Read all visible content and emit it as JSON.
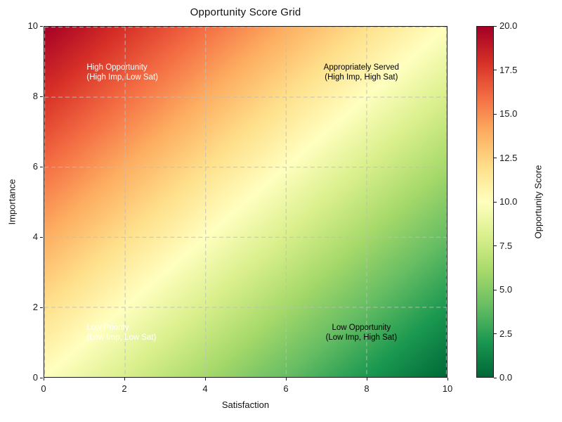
{
  "figure": {
    "background": "#ffffff"
  },
  "chart_data": {
    "type": "heatmap",
    "title": "Opportunity Score Grid",
    "xlabel": "Satisfaction",
    "ylabel": "Importance",
    "xlim": [
      0,
      10
    ],
    "ylim": [
      0,
      10
    ],
    "xticks": [
      0,
      2,
      4,
      6,
      8,
      10
    ],
    "yticks": [
      0,
      2,
      4,
      6,
      8,
      10
    ],
    "grid": {
      "show": true,
      "style": "dashed",
      "interval": 2,
      "color": "rgba(190,190,190,0.9)"
    },
    "value_formula": "opportunity_score = 10 + importance - satisfaction",
    "value_range": [
      0,
      20
    ],
    "corner_values": {
      "top_left": 20,
      "top_right": 10,
      "bottom_left": 10,
      "bottom_right": 0
    },
    "colormap": {
      "name": "RdYlGn reversed (green = low score, yellow = mid, red = high)",
      "anchors_low_to_high": [
        "#006837",
        "#1a9850",
        "#66bd63",
        "#a6d96a",
        "#d9ef8b",
        "#ffffbf",
        "#fee08b",
        "#fdae61",
        "#f46d43",
        "#d73027",
        "#a50026"
      ]
    },
    "colorbar": {
      "label": "Opportunity Score",
      "tick_labels": [
        "0.0",
        "2.5",
        "5.0",
        "7.5",
        "10.0",
        "12.5",
        "15.0",
        "17.5",
        "20.0"
      ]
    },
    "annotations": [
      {
        "line1": "High Opportunity",
        "line2": "(High Imp, Low Sat)",
        "x": 1.05,
        "y": 8.7,
        "color": "#ffffff",
        "align": "left"
      },
      {
        "line1": "Appropriately Served",
        "line2": "(High Imp, High Sat)",
        "x": 7.85,
        "y": 8.7,
        "color": "#000000",
        "align": "center"
      },
      {
        "line1": "Low Priority",
        "line2": "(Low Imp, Low Sat)",
        "x": 1.05,
        "y": 1.3,
        "color": "#ffffff",
        "align": "left"
      },
      {
        "line1": "Low Opportunity",
        "line2": "(Low Imp, High Sat)",
        "x": 7.85,
        "y": 1.3,
        "color": "#000000",
        "align": "center"
      }
    ]
  }
}
